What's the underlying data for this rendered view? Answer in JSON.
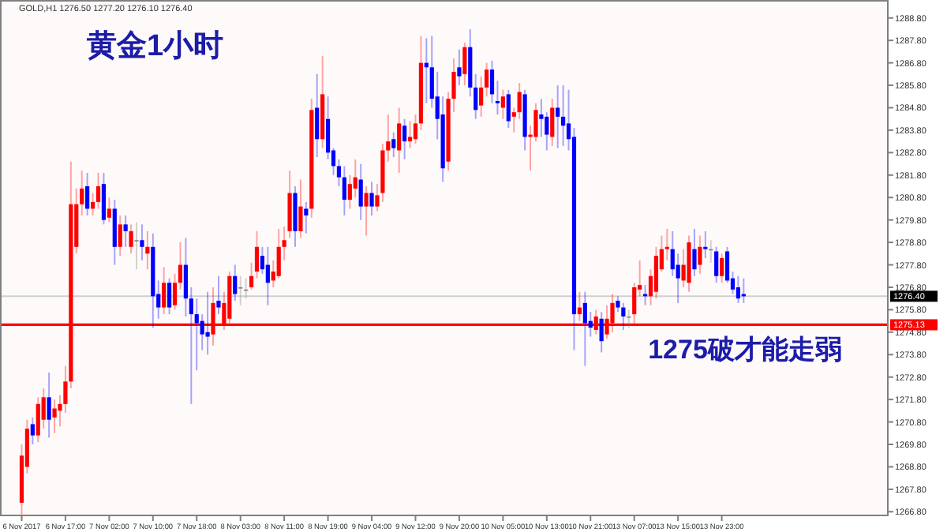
{
  "chart_data": {
    "type": "candlestick",
    "title": "黄金1小时",
    "subtitle": "GOLD,H1 1276.50 1277.20 1276.10 1276.40",
    "annotations": [
      "1275破才能走弱"
    ],
    "categories": [
      "6 Nov 2017",
      null,
      null,
      null,
      null,
      null,
      null,
      null,
      "6 Nov 17:00",
      null,
      null,
      null,
      null,
      null,
      null,
      null,
      "7 Nov 02:00",
      null,
      null,
      null,
      null,
      null,
      null,
      null,
      "7 Nov 10:00",
      null,
      null,
      null,
      null,
      null,
      null,
      null,
      "7 Nov 18:00",
      null,
      null,
      null,
      null,
      null,
      null,
      null,
      "8 Nov 03:00",
      null,
      null,
      null,
      null,
      null,
      null,
      null,
      "8 Nov 11:00",
      null,
      null,
      null,
      null,
      null,
      null,
      null,
      "8 Nov 19:00",
      null,
      null,
      null,
      null,
      null,
      null,
      null,
      "9 Nov 04:00",
      null,
      null,
      null,
      null,
      null,
      null,
      null,
      "9 Nov 12:00",
      null,
      null,
      null,
      null,
      null,
      null,
      null,
      "9 Nov 20:00",
      null,
      null,
      null,
      null,
      null,
      null,
      null,
      "10 Nov 05:00",
      null,
      null,
      null,
      null,
      null,
      null,
      null,
      "10 Nov 13:00",
      null,
      null,
      null,
      null,
      null,
      null,
      null,
      "10 Nov 21:00",
      null,
      null,
      null,
      null,
      null,
      null,
      null,
      "13 Nov 07:00",
      null,
      null,
      null,
      null,
      null,
      null,
      null,
      "13 Nov 15:00",
      null,
      null,
      null,
      null,
      null,
      null,
      null,
      "13 Nov 23:00",
      null,
      null,
      null,
      null,
      null,
      null,
      null,
      null,
      null,
      null,
      null,
      null,
      null,
      null,
      null,
      null,
      null,
      null,
      null,
      null,
      null,
      null,
      null,
      null,
      null,
      null,
      null,
      null,
      null,
      null
    ],
    "ohlc": [
      [
        1267.2,
        1269.8,
        1266.5,
        1269.3
      ],
      [
        1268.8,
        1270.9,
        1268.5,
        1270.5
      ],
      [
        1270.7,
        1271.0,
        1269.8,
        1270.2
      ],
      [
        1270.2,
        1271.9,
        1269.9,
        1271.6
      ],
      [
        1270.9,
        1272.3,
        1270.5,
        1271.9
      ],
      [
        1271.9,
        1273.0,
        1270.1,
        1270.9
      ],
      [
        1271.0,
        1271.8,
        1270.3,
        1271.4
      ],
      [
        1271.3,
        1272.0,
        1270.6,
        1271.6
      ],
      [
        1271.6,
        1273.3,
        1271.2,
        1272.6
      ],
      [
        1272.6,
        1282.4,
        1272.3,
        1280.5
      ],
      [
        1278.6,
        1281.2,
        1278.3,
        1280.5
      ],
      [
        1280.5,
        1282.0,
        1280.0,
        1281.2
      ],
      [
        1281.3,
        1281.9,
        1280.0,
        1280.3
      ],
      [
        1280.3,
        1281.0,
        1280.0,
        1280.6
      ],
      [
        1280.6,
        1281.9,
        1280.3,
        1281.3
      ],
      [
        1281.4,
        1281.9,
        1279.6,
        1279.8
      ],
      [
        1279.9,
        1280.8,
        1279.7,
        1280.3
      ],
      [
        1280.3,
        1280.7,
        1277.8,
        1278.6
      ],
      [
        1278.6,
        1280.0,
        1278.2,
        1279.6
      ],
      [
        1279.6,
        1280.0,
        1278.6,
        1279.3
      ],
      [
        1278.6,
        1279.6,
        1278.3,
        1279.3
      ],
      [
        1278.9,
        1279.7,
        1277.6,
        1278.9
      ],
      [
        1278.9,
        1279.6,
        1278.0,
        1278.6
      ],
      [
        1278.3,
        1279.3,
        1277.6,
        1278.6
      ],
      [
        1278.6,
        1279.2,
        1275.0,
        1276.4
      ],
      [
        1276.5,
        1277.1,
        1275.4,
        1275.9
      ],
      [
        1275.9,
        1277.7,
        1275.6,
        1277.0
      ],
      [
        1277.0,
        1277.2,
        1275.6,
        1275.9
      ],
      [
        1276.0,
        1277.4,
        1275.8,
        1277.0
      ],
      [
        1277.0,
        1278.8,
        1276.7,
        1277.8
      ],
      [
        1277.8,
        1279.0,
        1275.5,
        1276.3
      ],
      [
        1276.3,
        1276.8,
        1271.6,
        1275.6
      ],
      [
        1275.6,
        1276.3,
        1273.1,
        1275.2
      ],
      [
        1275.3,
        1275.6,
        1274.0,
        1274.7
      ],
      [
        1274.8,
        1276.6,
        1273.8,
        1274.6
      ],
      [
        1274.7,
        1276.8,
        1274.2,
        1276.1
      ],
      [
        1276.2,
        1277.3,
        1275.6,
        1275.9
      ],
      [
        1275.1,
        1276.6,
        1274.9,
        1276.1
      ],
      [
        1275.4,
        1277.5,
        1275.2,
        1277.3
      ],
      [
        1277.3,
        1277.8,
        1276.2,
        1276.5
      ],
      [
        1276.8,
        1277.3,
        1276.0,
        1276.8
      ],
      [
        1276.7,
        1277.2,
        1276.3,
        1276.7
      ],
      [
        1276.8,
        1277.9,
        1276.7,
        1277.3
      ],
      [
        1277.5,
        1279.3,
        1277.2,
        1278.6
      ],
      [
        1278.2,
        1278.6,
        1277.4,
        1277.6
      ],
      [
        1277.8,
        1278.6,
        1276.0,
        1277.0
      ],
      [
        1277.1,
        1278.0,
        1276.8,
        1277.5
      ],
      [
        1277.3,
        1279.4,
        1277.2,
        1278.6
      ],
      [
        1278.6,
        1279.5,
        1278.0,
        1278.9
      ],
      [
        1279.3,
        1282.0,
        1279.0,
        1281.0
      ],
      [
        1281.0,
        1281.3,
        1278.6,
        1279.3
      ],
      [
        1279.3,
        1281.6,
        1279.0,
        1280.4
      ],
      [
        1280.3,
        1280.6,
        1279.2,
        1280.0
      ],
      [
        1280.3,
        1285.2,
        1279.9,
        1284.7
      ],
      [
        1284.8,
        1286.3,
        1282.6,
        1283.4
      ],
      [
        1283.4,
        1287.1,
        1283.0,
        1285.4
      ],
      [
        1284.3,
        1285.3,
        1282.5,
        1282.8
      ],
      [
        1282.9,
        1283.0,
        1281.8,
        1282.2
      ],
      [
        1282.2,
        1282.5,
        1281.3,
        1281.7
      ],
      [
        1281.7,
        1282.2,
        1280.0,
        1280.7
      ],
      [
        1280.7,
        1281.8,
        1280.3,
        1281.4
      ],
      [
        1281.2,
        1282.5,
        1280.8,
        1281.7
      ],
      [
        1281.6,
        1282.3,
        1279.8,
        1280.4
      ],
      [
        1280.4,
        1281.3,
        1279.1,
        1281.0
      ],
      [
        1281.0,
        1281.5,
        1280.0,
        1280.4
      ],
      [
        1280.4,
        1281.4,
        1280.2,
        1280.9
      ],
      [
        1281.0,
        1283.2,
        1280.6,
        1282.9
      ],
      [
        1282.9,
        1284.5,
        1282.4,
        1283.3
      ],
      [
        1283.4,
        1283.7,
        1282.6,
        1283.0
      ],
      [
        1282.9,
        1284.8,
        1281.9,
        1284.1
      ],
      [
        1284.0,
        1284.3,
        1282.5,
        1283.3
      ],
      [
        1283.3,
        1284.2,
        1283.0,
        1283.5
      ],
      [
        1283.4,
        1284.5,
        1283.2,
        1284.1
      ],
      [
        1284.1,
        1288.0,
        1283.8,
        1286.8
      ],
      [
        1286.8,
        1287.9,
        1285.0,
        1286.6
      ],
      [
        1286.6,
        1288.0,
        1284.8,
        1285.2
      ],
      [
        1285.3,
        1286.4,
        1283.4,
        1284.3
      ],
      [
        1284.5,
        1285.3,
        1281.5,
        1282.1
      ],
      [
        1282.4,
        1285.5,
        1282.0,
        1285.2
      ],
      [
        1285.2,
        1287.0,
        1284.6,
        1286.4
      ],
      [
        1286.6,
        1287.4,
        1285.8,
        1286.2
      ],
      [
        1286.3,
        1287.7,
        1285.8,
        1287.5
      ],
      [
        1287.5,
        1288.3,
        1285.3,
        1285.7
      ],
      [
        1285.7,
        1286.3,
        1284.3,
        1284.7
      ],
      [
        1284.9,
        1286.2,
        1284.4,
        1285.7
      ],
      [
        1285.7,
        1286.8,
        1285.3,
        1286.5
      ],
      [
        1286.5,
        1286.9,
        1285.0,
        1285.4
      ],
      [
        1285.1,
        1286.0,
        1284.5,
        1285.0
      ],
      [
        1284.8,
        1285.6,
        1284.3,
        1285.3
      ],
      [
        1285.4,
        1285.6,
        1283.9,
        1284.2
      ],
      [
        1284.4,
        1284.8,
        1283.7,
        1284.6
      ],
      [
        1284.6,
        1285.9,
        1284.3,
        1285.5
      ],
      [
        1285.4,
        1285.6,
        1282.9,
        1283.5
      ],
      [
        1283.5,
        1284.0,
        1282.0,
        1283.6
      ],
      [
        1283.5,
        1285.0,
        1283.3,
        1284.7
      ],
      [
        1284.5,
        1285.2,
        1283.5,
        1284.3
      ],
      [
        1284.4,
        1284.6,
        1282.9,
        1283.6
      ],
      [
        1283.5,
        1285.2,
        1283.1,
        1284.8
      ],
      [
        1284.8,
        1285.8,
        1283.0,
        1284.4
      ],
      [
        1284.4,
        1285.8,
        1283.1,
        1284.0
      ],
      [
        1284.1,
        1285.6,
        1282.9,
        1283.4
      ],
      [
        1283.5,
        1283.9,
        1274.0,
        1275.6
      ],
      [
        1275.6,
        1276.6,
        1275.3,
        1275.9
      ],
      [
        1276.1,
        1276.6,
        1273.3,
        1275.2
      ],
      [
        1275.3,
        1275.7,
        1274.6,
        1275.0
      ],
      [
        1274.9,
        1275.8,
        1274.7,
        1275.5
      ],
      [
        1275.4,
        1275.7,
        1273.9,
        1274.4
      ],
      [
        1274.7,
        1276.0,
        1274.5,
        1275.4
      ],
      [
        1275.2,
        1276.5,
        1274.8,
        1276.1
      ],
      [
        1276.2,
        1276.4,
        1275.7,
        1275.9
      ],
      [
        1275.9,
        1276.1,
        1274.9,
        1275.5
      ],
      [
        1275.5,
        1275.8,
        1275.0,
        1275.5
      ],
      [
        1275.6,
        1277.0,
        1275.1,
        1276.8
      ],
      [
        1276.7,
        1278.0,
        1276.4,
        1276.9
      ],
      [
        1276.5,
        1276.9,
        1276.0,
        1276.4
      ],
      [
        1276.4,
        1277.6,
        1276.0,
        1277.3
      ],
      [
        1276.6,
        1278.6,
        1276.3,
        1278.2
      ],
      [
        1277.6,
        1279.1,
        1277.5,
        1278.5
      ],
      [
        1278.5,
        1279.4,
        1278.0,
        1278.6
      ],
      [
        1278.5,
        1279.3,
        1277.3,
        1277.6
      ],
      [
        1277.8,
        1278.3,
        1276.1,
        1277.2
      ],
      [
        1277.1,
        1278.5,
        1276.8,
        1277.8
      ],
      [
        1277.0,
        1279.1,
        1276.6,
        1278.8
      ],
      [
        1278.5,
        1279.4,
        1277.3,
        1277.6
      ],
      [
        1277.8,
        1279.1,
        1277.4,
        1278.6
      ],
      [
        1278.6,
        1279.3,
        1278.1,
        1278.5
      ],
      [
        1278.5,
        1278.9,
        1277.9,
        1278.5
      ],
      [
        1278.4,
        1278.6,
        1277.0,
        1277.3
      ],
      [
        1277.3,
        1278.3,
        1277.0,
        1278.1
      ],
      [
        1278.4,
        1278.6,
        1277.0,
        1277.1
      ],
      [
        1277.2,
        1277.5,
        1276.5,
        1276.7
      ],
      [
        1276.8,
        1277.3,
        1276.1,
        1276.3
      ],
      [
        1276.5,
        1277.2,
        1276.1,
        1276.4
      ],
      null,
      null,
      null,
      null,
      null,
      null,
      null,
      null,
      null,
      null,
      null,
      null,
      null,
      null,
      null,
      null,
      null,
      null,
      null,
      null,
      null,
      null,
      null,
      null,
      null,
      null
    ],
    "colors": [
      "#ff0000",
      "#ff0000",
      "#0000ff",
      "#ff0000",
      "#ff0000",
      "#0000ff",
      "#ff0000",
      "#ff0000",
      "#ff0000",
      "#ff0000",
      "#ff0000",
      "#ff0000",
      "#0000ff",
      "#ff0000",
      "#ff0000",
      "#0000ff",
      "#ff0000",
      "#0000ff",
      "#ff0000",
      "#0000ff",
      "#ff0000",
      "#808080",
      "#0000ff",
      "#ff0000",
      "#0000ff",
      "#0000ff",
      "#ff0000",
      "#0000ff",
      "#ff0000",
      "#ff0000",
      "#0000ff",
      "#0000ff",
      "#0000ff",
      "#0000ff",
      "#0000ff",
      "#ff0000",
      "#0000ff",
      "#ff0000",
      "#ff0000",
      "#0000ff",
      "#808080",
      "#808080",
      "#ff0000",
      "#ff0000",
      "#0000ff",
      "#0000ff",
      "#ff0000",
      "#ff0000",
      "#ff0000",
      "#ff0000",
      "#0000ff",
      "#ff0000",
      "#0000ff",
      "#ff0000",
      "#0000ff",
      "#ff0000",
      "#0000ff",
      "#0000ff",
      "#0000ff",
      "#0000ff",
      "#ff0000",
      "#ff0000",
      "#0000ff",
      "#ff0000",
      "#0000ff",
      "#ff0000",
      "#ff0000",
      "#ff0000",
      "#0000ff",
      "#ff0000",
      "#0000ff",
      "#ff0000",
      "#ff0000",
      "#ff0000",
      "#0000ff",
      "#0000ff",
      "#0000ff",
      "#0000ff",
      "#ff0000",
      "#ff0000",
      "#0000ff",
      "#ff0000",
      "#0000ff",
      "#0000ff",
      "#ff0000",
      "#ff0000",
      "#0000ff",
      "#0000ff",
      "#ff0000",
      "#0000ff",
      "#ff0000",
      "#ff0000",
      "#0000ff",
      "#ff0000",
      "#ff0000",
      "#0000ff",
      "#0000ff",
      "#ff0000",
      "#0000ff",
      "#0000ff",
      "#0000ff",
      "#0000ff",
      "#ff0000",
      "#0000ff",
      "#0000ff",
      "#ff0000",
      "#0000ff",
      "#ff0000",
      "#ff0000",
      "#0000ff",
      "#0000ff",
      "#808080",
      "#ff0000",
      "#ff0000",
      "#0000ff",
      "#ff0000",
      "#ff0000",
      "#ff0000",
      "#ff0000",
      "#0000ff",
      "#0000ff",
      "#ff0000",
      "#ff0000",
      "#0000ff",
      "#ff0000",
      "#0000ff",
      "#808080",
      "#0000ff",
      "#ff0000",
      "#0000ff",
      "#0000ff",
      "#0000ff",
      "#0000ff",
      null,
      null,
      null,
      null,
      null,
      null,
      null,
      null,
      null,
      null,
      null,
      null,
      null,
      null,
      null,
      null,
      null,
      null,
      null,
      null,
      null,
      null,
      null,
      null,
      null,
      null
    ],
    "ylim": [
      1266.6,
      1289.6
    ],
    "yticks": [
      {
        "value": 1266.8,
        "label": "1266.80"
      },
      {
        "value": 1267.8,
        "label": "1267.80"
      },
      {
        "value": 1268.8,
        "label": "1268.80"
      },
      {
        "value": 1269.8,
        "label": "1269.80"
      },
      {
        "value": 1270.8,
        "label": "1270.80"
      },
      {
        "value": 1271.8,
        "label": "1271.80"
      },
      {
        "value": 1272.8,
        "label": "1272.80"
      },
      {
        "value": 1273.8,
        "label": "1273.80"
      },
      {
        "value": 1274.8,
        "label": "1274.80"
      },
      {
        "value": 1275.8,
        "label": "1275.80"
      },
      {
        "value": 1276.8,
        "label": "1276.80"
      },
      {
        "value": 1277.8,
        "label": "1277.80"
      },
      {
        "value": 1278.8,
        "label": "1278.80"
      },
      {
        "value": 1279.8,
        "label": "1279.80"
      },
      {
        "value": 1280.8,
        "label": "1280.80"
      },
      {
        "value": 1281.8,
        "label": "1281.80"
      },
      {
        "value": 1282.8,
        "label": "1282.80"
      },
      {
        "value": 1283.8,
        "label": "1283.80"
      },
      {
        "value": 1284.8,
        "label": "1284.80"
      },
      {
        "value": 1285.8,
        "label": "1285.80"
      },
      {
        "value": 1286.8,
        "label": "1286.80"
      },
      {
        "value": 1287.8,
        "label": "1287.80"
      },
      {
        "value": 1288.8,
        "label": "1288.80"
      }
    ],
    "ref_lines": [
      {
        "axis": "y",
        "value": 1276.4,
        "label": "1276.40",
        "color": "#d0d0d0"
      },
      {
        "axis": "y",
        "value": 1275.13,
        "label": "1275.13",
        "color": "#ff0000"
      }
    ],
    "grid": false
  }
}
